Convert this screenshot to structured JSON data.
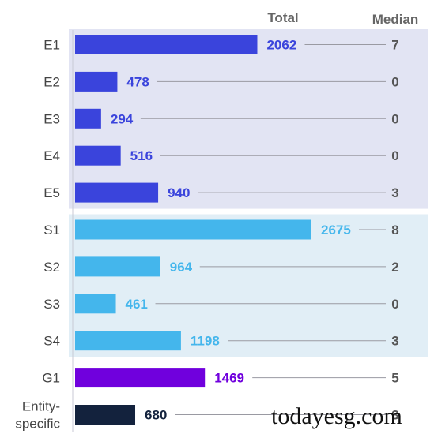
{
  "chart_data": {
    "type": "bar",
    "orientation": "horizontal",
    "columns": {
      "total_label": "Total",
      "median_label": "Median"
    },
    "rows": [
      {
        "label": "E1",
        "total": 2062,
        "median": 7,
        "group": "E"
      },
      {
        "label": "E2",
        "total": 478,
        "median": 0,
        "group": "E"
      },
      {
        "label": "E3",
        "total": 294,
        "median": 0,
        "group": "E"
      },
      {
        "label": "E4",
        "total": 516,
        "median": 0,
        "group": "E"
      },
      {
        "label": "E5",
        "total": 940,
        "median": 3,
        "group": "E"
      },
      {
        "label": "S1",
        "total": 2675,
        "median": 8,
        "group": "S"
      },
      {
        "label": "S2",
        "total": 964,
        "median": 2,
        "group": "S"
      },
      {
        "label": "S3",
        "total": 461,
        "median": 0,
        "group": "S"
      },
      {
        "label": "S4",
        "total": 1198,
        "median": 3,
        "group": "S"
      },
      {
        "label": "G1",
        "total": 1469,
        "median": 5,
        "group": "G"
      },
      {
        "label": "Entity-\nspecific",
        "total": 680,
        "median": 3,
        "group": "X"
      }
    ],
    "groups": {
      "E": {
        "bar": "#3a44dc",
        "text": "#3a44dc",
        "band": "#e2e4f3"
      },
      "S": {
        "bar": "#44b6ec",
        "text": "#44b6ec",
        "band": "#e1eef6"
      },
      "G": {
        "bar": "#7000dd",
        "text": "#7000dd",
        "band": ""
      },
      "X": {
        "bar": "#13223d",
        "text": "#13223d",
        "band": ""
      }
    },
    "xlim": [
      0,
      2675
    ]
  },
  "watermark": "todayesg.com"
}
